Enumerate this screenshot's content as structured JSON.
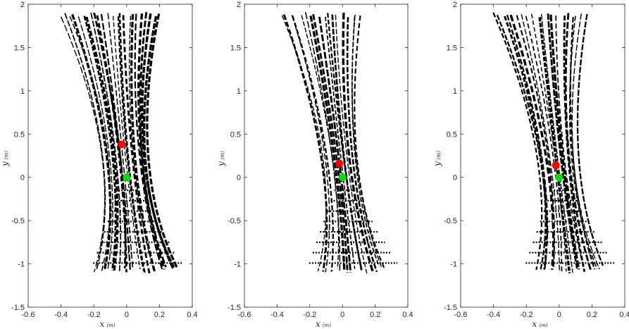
{
  "chart_data": [
    {
      "type": "line",
      "xlabel": "x",
      "xlabel_unit": "(m)",
      "ylabel": "y",
      "ylabel_unit": "(m)",
      "xlim": [
        -0.6,
        0.4
      ],
      "ylim": [
        -1.5,
        2
      ],
      "xticks": [
        "-0.6",
        "-0.4",
        "-0.2",
        "0",
        "0.2",
        "0.4"
      ],
      "yticks": [
        "-1.5",
        "-1",
        "-0.5",
        "0",
        "0.5",
        "1",
        "1.5",
        "2"
      ],
      "grid": false,
      "fan": {
        "lines": 24,
        "top_y": 1.88,
        "top_x_range": [
          -0.4,
          0.2
        ],
        "bottom_y": -1.08,
        "bottom_x_range": [
          -0.2,
          0.32
        ],
        "waist": [
          0.0,
          0.12
        ],
        "line_color": "#000000",
        "style": "dashed"
      },
      "markers": [
        {
          "name": "estimate",
          "x": -0.03,
          "y": 0.38,
          "color": "#ff0000"
        },
        {
          "name": "origin",
          "x": 0.0,
          "y": 0.0,
          "color": "#00dd00"
        }
      ]
    },
    {
      "type": "line",
      "xlabel": "x",
      "xlabel_unit": "(m)",
      "ylabel": "y",
      "ylabel_unit": "(m)",
      "xlim": [
        -0.6,
        0.4
      ],
      "ylim": [
        -1.5,
        2
      ],
      "xticks": [
        "-0.6",
        "-0.4",
        "-0.2",
        "0",
        "0.2",
        "0.4"
      ],
      "yticks": [
        "-1.5",
        "-1",
        "-0.5",
        "0",
        "0.5",
        "1",
        "1.5",
        "2"
      ],
      "grid": false,
      "fan": {
        "lines": 18,
        "top_y": 1.88,
        "top_x_range": [
          -0.38,
          0.12
        ],
        "bottom_y": -1.08,
        "bottom_x_range": [
          -0.14,
          0.27
        ],
        "waist": [
          0.0,
          0.1
        ],
        "line_color": "#000000",
        "style": "dashed"
      },
      "markers": [
        {
          "name": "estimate",
          "x": -0.02,
          "y": 0.16,
          "color": "#ff0000"
        },
        {
          "name": "origin",
          "x": 0.0,
          "y": 0.0,
          "color": "#00dd00"
        }
      ]
    },
    {
      "type": "line",
      "xlabel": "x",
      "xlabel_unit": "(m)",
      "ylabel": "y",
      "ylabel_unit": "(m)",
      "xlim": [
        -0.6,
        0.4
      ],
      "ylim": [
        -1.5,
        2
      ],
      "xticks": [
        "-0.6",
        "-0.4",
        "-0.2",
        "0",
        "0.2",
        "0.4"
      ],
      "yticks": [
        "-1.5",
        "-1",
        "-0.5",
        "0",
        "0.5",
        "1",
        "1.5",
        "2"
      ],
      "grid": false,
      "fan": {
        "lines": 20,
        "top_y": 1.88,
        "top_x_range": [
          -0.4,
          0.17
        ],
        "bottom_y": -1.08,
        "bottom_x_range": [
          -0.14,
          0.28
        ],
        "waist": [
          0.0,
          0.11
        ],
        "line_color": "#000000",
        "style": "dashed"
      },
      "markers": [
        {
          "name": "estimate",
          "x": -0.02,
          "y": 0.14,
          "color": "#ff0000"
        },
        {
          "name": "origin",
          "x": 0.0,
          "y": 0.0,
          "color": "#00dd00"
        }
      ]
    }
  ]
}
